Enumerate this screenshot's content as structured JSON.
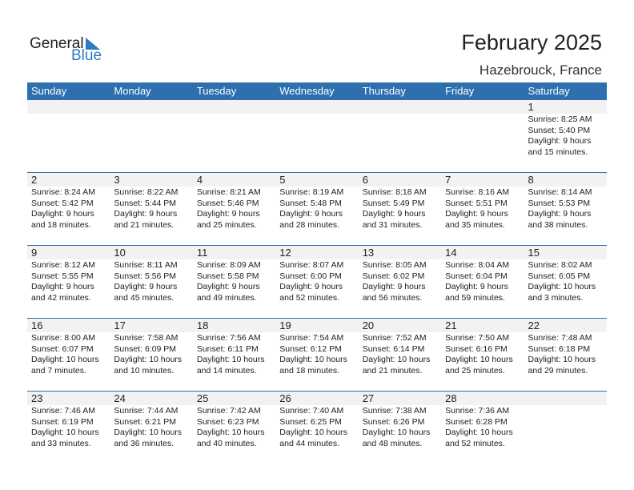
{
  "logo": {
    "line1": "General",
    "line2": "Blue"
  },
  "title": "February 2025",
  "location": "Hazebrouck, France",
  "colors": {
    "header": "#2e6fb0",
    "brand": "#2d7bc4"
  },
  "weekdays": [
    "Sunday",
    "Monday",
    "Tuesday",
    "Wednesday",
    "Thursday",
    "Friday",
    "Saturday"
  ],
  "weeks": [
    [
      null,
      null,
      null,
      null,
      null,
      null,
      {
        "day": "1",
        "sunrise": "Sunrise: 8:25 AM",
        "sunset": "Sunset: 5:40 PM",
        "daylight1": "Daylight: 9 hours",
        "daylight2": "and 15 minutes."
      }
    ],
    [
      {
        "day": "2",
        "sunrise": "Sunrise: 8:24 AM",
        "sunset": "Sunset: 5:42 PM",
        "daylight1": "Daylight: 9 hours",
        "daylight2": "and 18 minutes."
      },
      {
        "day": "3",
        "sunrise": "Sunrise: 8:22 AM",
        "sunset": "Sunset: 5:44 PM",
        "daylight1": "Daylight: 9 hours",
        "daylight2": "and 21 minutes."
      },
      {
        "day": "4",
        "sunrise": "Sunrise: 8:21 AM",
        "sunset": "Sunset: 5:46 PM",
        "daylight1": "Daylight: 9 hours",
        "daylight2": "and 25 minutes."
      },
      {
        "day": "5",
        "sunrise": "Sunrise: 8:19 AM",
        "sunset": "Sunset: 5:48 PM",
        "daylight1": "Daylight: 9 hours",
        "daylight2": "and 28 minutes."
      },
      {
        "day": "6",
        "sunrise": "Sunrise: 8:18 AM",
        "sunset": "Sunset: 5:49 PM",
        "daylight1": "Daylight: 9 hours",
        "daylight2": "and 31 minutes."
      },
      {
        "day": "7",
        "sunrise": "Sunrise: 8:16 AM",
        "sunset": "Sunset: 5:51 PM",
        "daylight1": "Daylight: 9 hours",
        "daylight2": "and 35 minutes."
      },
      {
        "day": "8",
        "sunrise": "Sunrise: 8:14 AM",
        "sunset": "Sunset: 5:53 PM",
        "daylight1": "Daylight: 9 hours",
        "daylight2": "and 38 minutes."
      }
    ],
    [
      {
        "day": "9",
        "sunrise": "Sunrise: 8:12 AM",
        "sunset": "Sunset: 5:55 PM",
        "daylight1": "Daylight: 9 hours",
        "daylight2": "and 42 minutes."
      },
      {
        "day": "10",
        "sunrise": "Sunrise: 8:11 AM",
        "sunset": "Sunset: 5:56 PM",
        "daylight1": "Daylight: 9 hours",
        "daylight2": "and 45 minutes."
      },
      {
        "day": "11",
        "sunrise": "Sunrise: 8:09 AM",
        "sunset": "Sunset: 5:58 PM",
        "daylight1": "Daylight: 9 hours",
        "daylight2": "and 49 minutes."
      },
      {
        "day": "12",
        "sunrise": "Sunrise: 8:07 AM",
        "sunset": "Sunset: 6:00 PM",
        "daylight1": "Daylight: 9 hours",
        "daylight2": "and 52 minutes."
      },
      {
        "day": "13",
        "sunrise": "Sunrise: 8:05 AM",
        "sunset": "Sunset: 6:02 PM",
        "daylight1": "Daylight: 9 hours",
        "daylight2": "and 56 minutes."
      },
      {
        "day": "14",
        "sunrise": "Sunrise: 8:04 AM",
        "sunset": "Sunset: 6:04 PM",
        "daylight1": "Daylight: 9 hours",
        "daylight2": "and 59 minutes."
      },
      {
        "day": "15",
        "sunrise": "Sunrise: 8:02 AM",
        "sunset": "Sunset: 6:05 PM",
        "daylight1": "Daylight: 10 hours",
        "daylight2": "and 3 minutes."
      }
    ],
    [
      {
        "day": "16",
        "sunrise": "Sunrise: 8:00 AM",
        "sunset": "Sunset: 6:07 PM",
        "daylight1": "Daylight: 10 hours",
        "daylight2": "and 7 minutes."
      },
      {
        "day": "17",
        "sunrise": "Sunrise: 7:58 AM",
        "sunset": "Sunset: 6:09 PM",
        "daylight1": "Daylight: 10 hours",
        "daylight2": "and 10 minutes."
      },
      {
        "day": "18",
        "sunrise": "Sunrise: 7:56 AM",
        "sunset": "Sunset: 6:11 PM",
        "daylight1": "Daylight: 10 hours",
        "daylight2": "and 14 minutes."
      },
      {
        "day": "19",
        "sunrise": "Sunrise: 7:54 AM",
        "sunset": "Sunset: 6:12 PM",
        "daylight1": "Daylight: 10 hours",
        "daylight2": "and 18 minutes."
      },
      {
        "day": "20",
        "sunrise": "Sunrise: 7:52 AM",
        "sunset": "Sunset: 6:14 PM",
        "daylight1": "Daylight: 10 hours",
        "daylight2": "and 21 minutes."
      },
      {
        "day": "21",
        "sunrise": "Sunrise: 7:50 AM",
        "sunset": "Sunset: 6:16 PM",
        "daylight1": "Daylight: 10 hours",
        "daylight2": "and 25 minutes."
      },
      {
        "day": "22",
        "sunrise": "Sunrise: 7:48 AM",
        "sunset": "Sunset: 6:18 PM",
        "daylight1": "Daylight: 10 hours",
        "daylight2": "and 29 minutes."
      }
    ],
    [
      {
        "day": "23",
        "sunrise": "Sunrise: 7:46 AM",
        "sunset": "Sunset: 6:19 PM",
        "daylight1": "Daylight: 10 hours",
        "daylight2": "and 33 minutes."
      },
      {
        "day": "24",
        "sunrise": "Sunrise: 7:44 AM",
        "sunset": "Sunset: 6:21 PM",
        "daylight1": "Daylight: 10 hours",
        "daylight2": "and 36 minutes."
      },
      {
        "day": "25",
        "sunrise": "Sunrise: 7:42 AM",
        "sunset": "Sunset: 6:23 PM",
        "daylight1": "Daylight: 10 hours",
        "daylight2": "and 40 minutes."
      },
      {
        "day": "26",
        "sunrise": "Sunrise: 7:40 AM",
        "sunset": "Sunset: 6:25 PM",
        "daylight1": "Daylight: 10 hours",
        "daylight2": "and 44 minutes."
      },
      {
        "day": "27",
        "sunrise": "Sunrise: 7:38 AM",
        "sunset": "Sunset: 6:26 PM",
        "daylight1": "Daylight: 10 hours",
        "daylight2": "and 48 minutes."
      },
      {
        "day": "28",
        "sunrise": "Sunrise: 7:36 AM",
        "sunset": "Sunset: 6:28 PM",
        "daylight1": "Daylight: 10 hours",
        "daylight2": "and 52 minutes."
      },
      null
    ]
  ]
}
